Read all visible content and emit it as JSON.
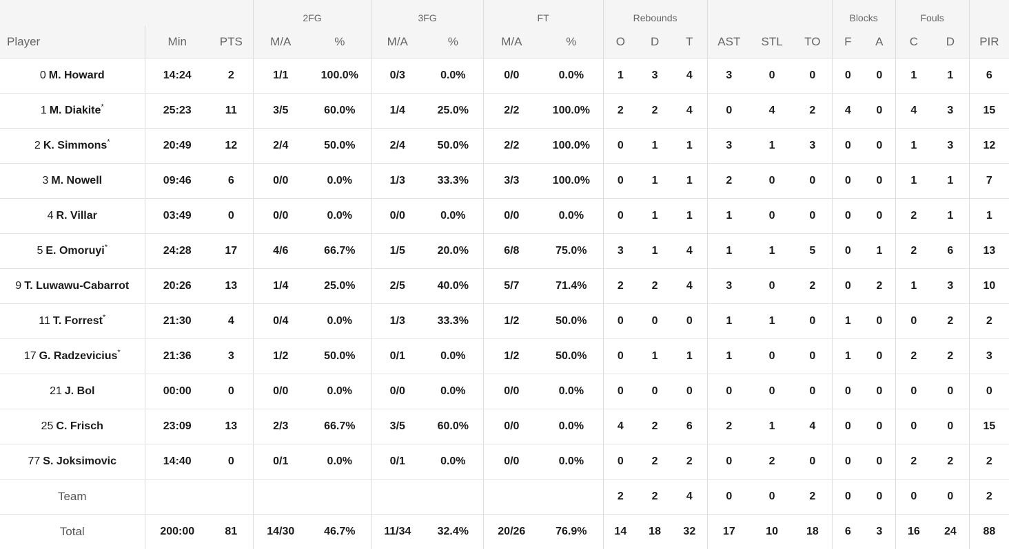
{
  "groups": {
    "fg2": "2FG",
    "fg3": "3FG",
    "ft": "FT",
    "rebounds": "Rebounds",
    "blocks": "Blocks",
    "fouls": "Fouls"
  },
  "columns": [
    "Player",
    "Min",
    "PTS",
    "M/A",
    "%",
    "M/A",
    "%",
    "M/A",
    "%",
    "O",
    "D",
    "T",
    "AST",
    "STL",
    "TO",
    "F",
    "A",
    "C",
    "D",
    "PIR"
  ],
  "players": [
    {
      "num": "0",
      "name": "M. Howard",
      "starter": "",
      "stats": [
        "14:24",
        "2",
        "1/1",
        "100.0%",
        "0/3",
        "0.0%",
        "0/0",
        "0.0%",
        "1",
        "3",
        "4",
        "3",
        "0",
        "0",
        "0",
        "0",
        "1",
        "1",
        "6"
      ]
    },
    {
      "num": "1",
      "name": "M. Diakite",
      "starter": "*",
      "stats": [
        "25:23",
        "11",
        "3/5",
        "60.0%",
        "1/4",
        "25.0%",
        "2/2",
        "100.0%",
        "2",
        "2",
        "4",
        "0",
        "4",
        "2",
        "4",
        "0",
        "4",
        "3",
        "15"
      ]
    },
    {
      "num": "2",
      "name": "K. Simmons",
      "starter": "*",
      "stats": [
        "20:49",
        "12",
        "2/4",
        "50.0%",
        "2/4",
        "50.0%",
        "2/2",
        "100.0%",
        "0",
        "1",
        "1",
        "3",
        "1",
        "3",
        "0",
        "0",
        "1",
        "3",
        "12"
      ]
    },
    {
      "num": "3",
      "name": "M. Nowell",
      "starter": "",
      "stats": [
        "09:46",
        "6",
        "0/0",
        "0.0%",
        "1/3",
        "33.3%",
        "3/3",
        "100.0%",
        "0",
        "1",
        "1",
        "2",
        "0",
        "0",
        "0",
        "0",
        "1",
        "1",
        "7"
      ]
    },
    {
      "num": "4",
      "name": "R. Villar",
      "starter": "",
      "stats": [
        "03:49",
        "0",
        "0/0",
        "0.0%",
        "0/0",
        "0.0%",
        "0/0",
        "0.0%",
        "0",
        "1",
        "1",
        "1",
        "0",
        "0",
        "0",
        "0",
        "2",
        "1",
        "1"
      ]
    },
    {
      "num": "5",
      "name": "E. Omoruyi",
      "starter": "*",
      "stats": [
        "24:28",
        "17",
        "4/6",
        "66.7%",
        "1/5",
        "20.0%",
        "6/8",
        "75.0%",
        "3",
        "1",
        "4",
        "1",
        "1",
        "5",
        "0",
        "1",
        "2",
        "6",
        "13"
      ]
    },
    {
      "num": "9",
      "name": "T. Luwawu-Cabarrot",
      "starter": "",
      "stats": [
        "20:26",
        "13",
        "1/4",
        "25.0%",
        "2/5",
        "40.0%",
        "5/7",
        "71.4%",
        "2",
        "2",
        "4",
        "3",
        "0",
        "2",
        "0",
        "2",
        "1",
        "3",
        "10"
      ]
    },
    {
      "num": "11",
      "name": "T. Forrest",
      "starter": "*",
      "stats": [
        "21:30",
        "4",
        "0/4",
        "0.0%",
        "1/3",
        "33.3%",
        "1/2",
        "50.0%",
        "0",
        "0",
        "0",
        "1",
        "1",
        "0",
        "1",
        "0",
        "0",
        "2",
        "2"
      ]
    },
    {
      "num": "17",
      "name": "G. Radzevicius",
      "starter": "*",
      "stats": [
        "21:36",
        "3",
        "1/2",
        "50.0%",
        "0/1",
        "0.0%",
        "1/2",
        "50.0%",
        "0",
        "1",
        "1",
        "1",
        "0",
        "0",
        "1",
        "0",
        "2",
        "2",
        "3"
      ]
    },
    {
      "num": "21",
      "name": "J. Bol",
      "starter": "",
      "stats": [
        "00:00",
        "0",
        "0/0",
        "0.0%",
        "0/0",
        "0.0%",
        "0/0",
        "0.0%",
        "0",
        "0",
        "0",
        "0",
        "0",
        "0",
        "0",
        "0",
        "0",
        "0",
        "0"
      ]
    },
    {
      "num": "25",
      "name": "C. Frisch",
      "starter": "",
      "stats": [
        "23:09",
        "13",
        "2/3",
        "66.7%",
        "3/5",
        "60.0%",
        "0/0",
        "0.0%",
        "4",
        "2",
        "6",
        "2",
        "1",
        "4",
        "0",
        "0",
        "0",
        "0",
        "15"
      ]
    },
    {
      "num": "77",
      "name": "S. Joksimovic",
      "starter": "",
      "stats": [
        "14:40",
        "0",
        "0/1",
        "0.0%",
        "0/1",
        "0.0%",
        "0/0",
        "0.0%",
        "0",
        "2",
        "2",
        "0",
        "2",
        "0",
        "0",
        "0",
        "2",
        "2",
        "2"
      ]
    }
  ],
  "team": {
    "label": "Team",
    "stats": [
      "",
      "",
      "",
      "",
      "",
      "",
      "",
      "",
      "2",
      "2",
      "4",
      "0",
      "0",
      "2",
      "0",
      "0",
      "0",
      "0",
      "2"
    ]
  },
  "total": {
    "label": "Total",
    "stats": [
      "200:00",
      "81",
      "14/30",
      "46.7%",
      "11/34",
      "32.4%",
      "20/26",
      "76.9%",
      "14",
      "18",
      "32",
      "17",
      "10",
      "18",
      "6",
      "3",
      "16",
      "24",
      "88"
    ]
  }
}
